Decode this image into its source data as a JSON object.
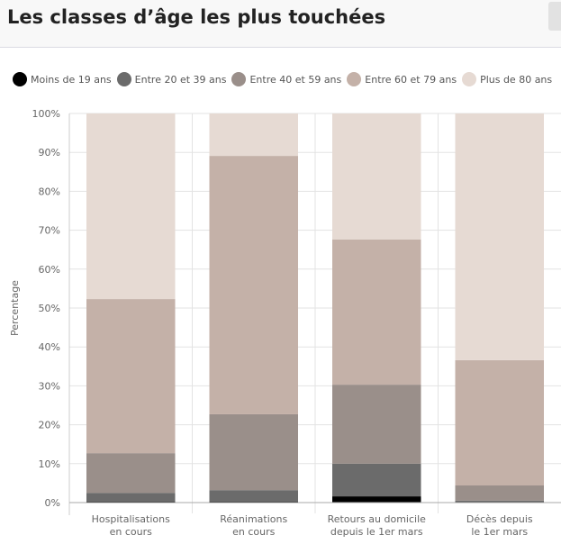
{
  "header": {
    "title": "Les classes d’âge les plus touchées"
  },
  "chart_data": {
    "type": "bar",
    "stacked": true,
    "title": "Les classes d’âge les plus touchées",
    "xlabel": "",
    "ylabel": "Percentage",
    "ylim": [
      0,
      100
    ],
    "yticks": [
      "0%",
      "10%",
      "20%",
      "30%",
      "40%",
      "50%",
      "60%",
      "70%",
      "80%",
      "90%",
      "100%"
    ],
    "grid": true,
    "legend_position": "top",
    "categories": [
      [
        "Hospitalisations",
        "en cours"
      ],
      [
        "Réanimations",
        "en cours"
      ],
      [
        "Retours au domicile",
        "depuis le 1er mars"
      ],
      [
        "Décès depuis",
        "le 1er mars"
      ]
    ],
    "series": [
      {
        "name": "Moins de 19 ans",
        "color": "#000000",
        "values": [
          0.3,
          0.3,
          1.6,
          0.2
        ]
      },
      {
        "name": "Entre 20 et 39 ans",
        "color": "#6b6b6b",
        "values": [
          2.2,
          2.9,
          8.4,
          0.3
        ]
      },
      {
        "name": "Entre 40 et 59 ans",
        "color": "#9a8f8a",
        "values": [
          10.2,
          19.5,
          20.3,
          3.9
        ]
      },
      {
        "name": "Entre 60 et 79 ans",
        "color": "#c4b1a8",
        "values": [
          39.6,
          66.4,
          37.3,
          32.2
        ]
      },
      {
        "name": "Plus de 80 ans",
        "color": "#e6dad3",
        "values": [
          47.7,
          10.9,
          32.4,
          63.4
        ]
      }
    ]
  }
}
